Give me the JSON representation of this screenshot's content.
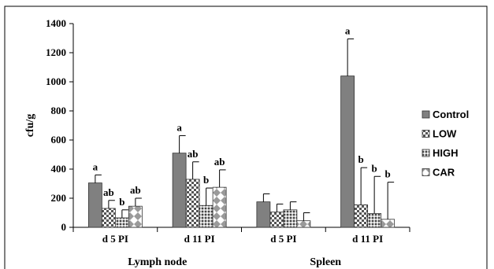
{
  "chart_data": {
    "type": "bar",
    "ylabel": "cfu/g",
    "ylim": [
      0,
      1400
    ],
    "yticks": [
      "0",
      "200",
      "400",
      "600",
      "800",
      "1000",
      "1200",
      "1400"
    ],
    "categories": [
      "d 5 PI",
      "d 11 PI",
      "d 5 PI",
      "d 11 PI"
    ],
    "groups": [
      {
        "label": "Lymph node",
        "categories": [
          0,
          1
        ]
      },
      {
        "label": "Spleen",
        "categories": [
          2,
          3
        ]
      }
    ],
    "legend_position": "right",
    "series": [
      {
        "name": "Control",
        "pattern": "solid-gray",
        "values": [
          305,
          510,
          175,
          1040
        ],
        "errors": [
          55,
          120,
          55,
          255
        ],
        "letters": [
          "a",
          "a",
          "",
          "a"
        ]
      },
      {
        "name": "LOW",
        "pattern": "checker",
        "values": [
          130,
          330,
          105,
          155
        ],
        "errors": [
          55,
          120,
          55,
          255
        ],
        "letters": [
          "ab",
          "ab",
          "",
          "b"
        ]
      },
      {
        "name": "HIGH",
        "pattern": "dots",
        "values": [
          65,
          150,
          120,
          95
        ],
        "errors": [
          55,
          120,
          55,
          255
        ],
        "letters": [
          "b",
          "b",
          "",
          "b"
        ]
      },
      {
        "name": "CAR",
        "pattern": "diamonds",
        "values": [
          145,
          275,
          45,
          55
        ],
        "errors": [
          55,
          120,
          55,
          255
        ],
        "letters": [
          "ab",
          "ab",
          "",
          "b"
        ]
      }
    ],
    "colors": {
      "solid": "#808080",
      "pattern_dark": "#555555",
      "pattern_light": "#ffffff"
    }
  }
}
